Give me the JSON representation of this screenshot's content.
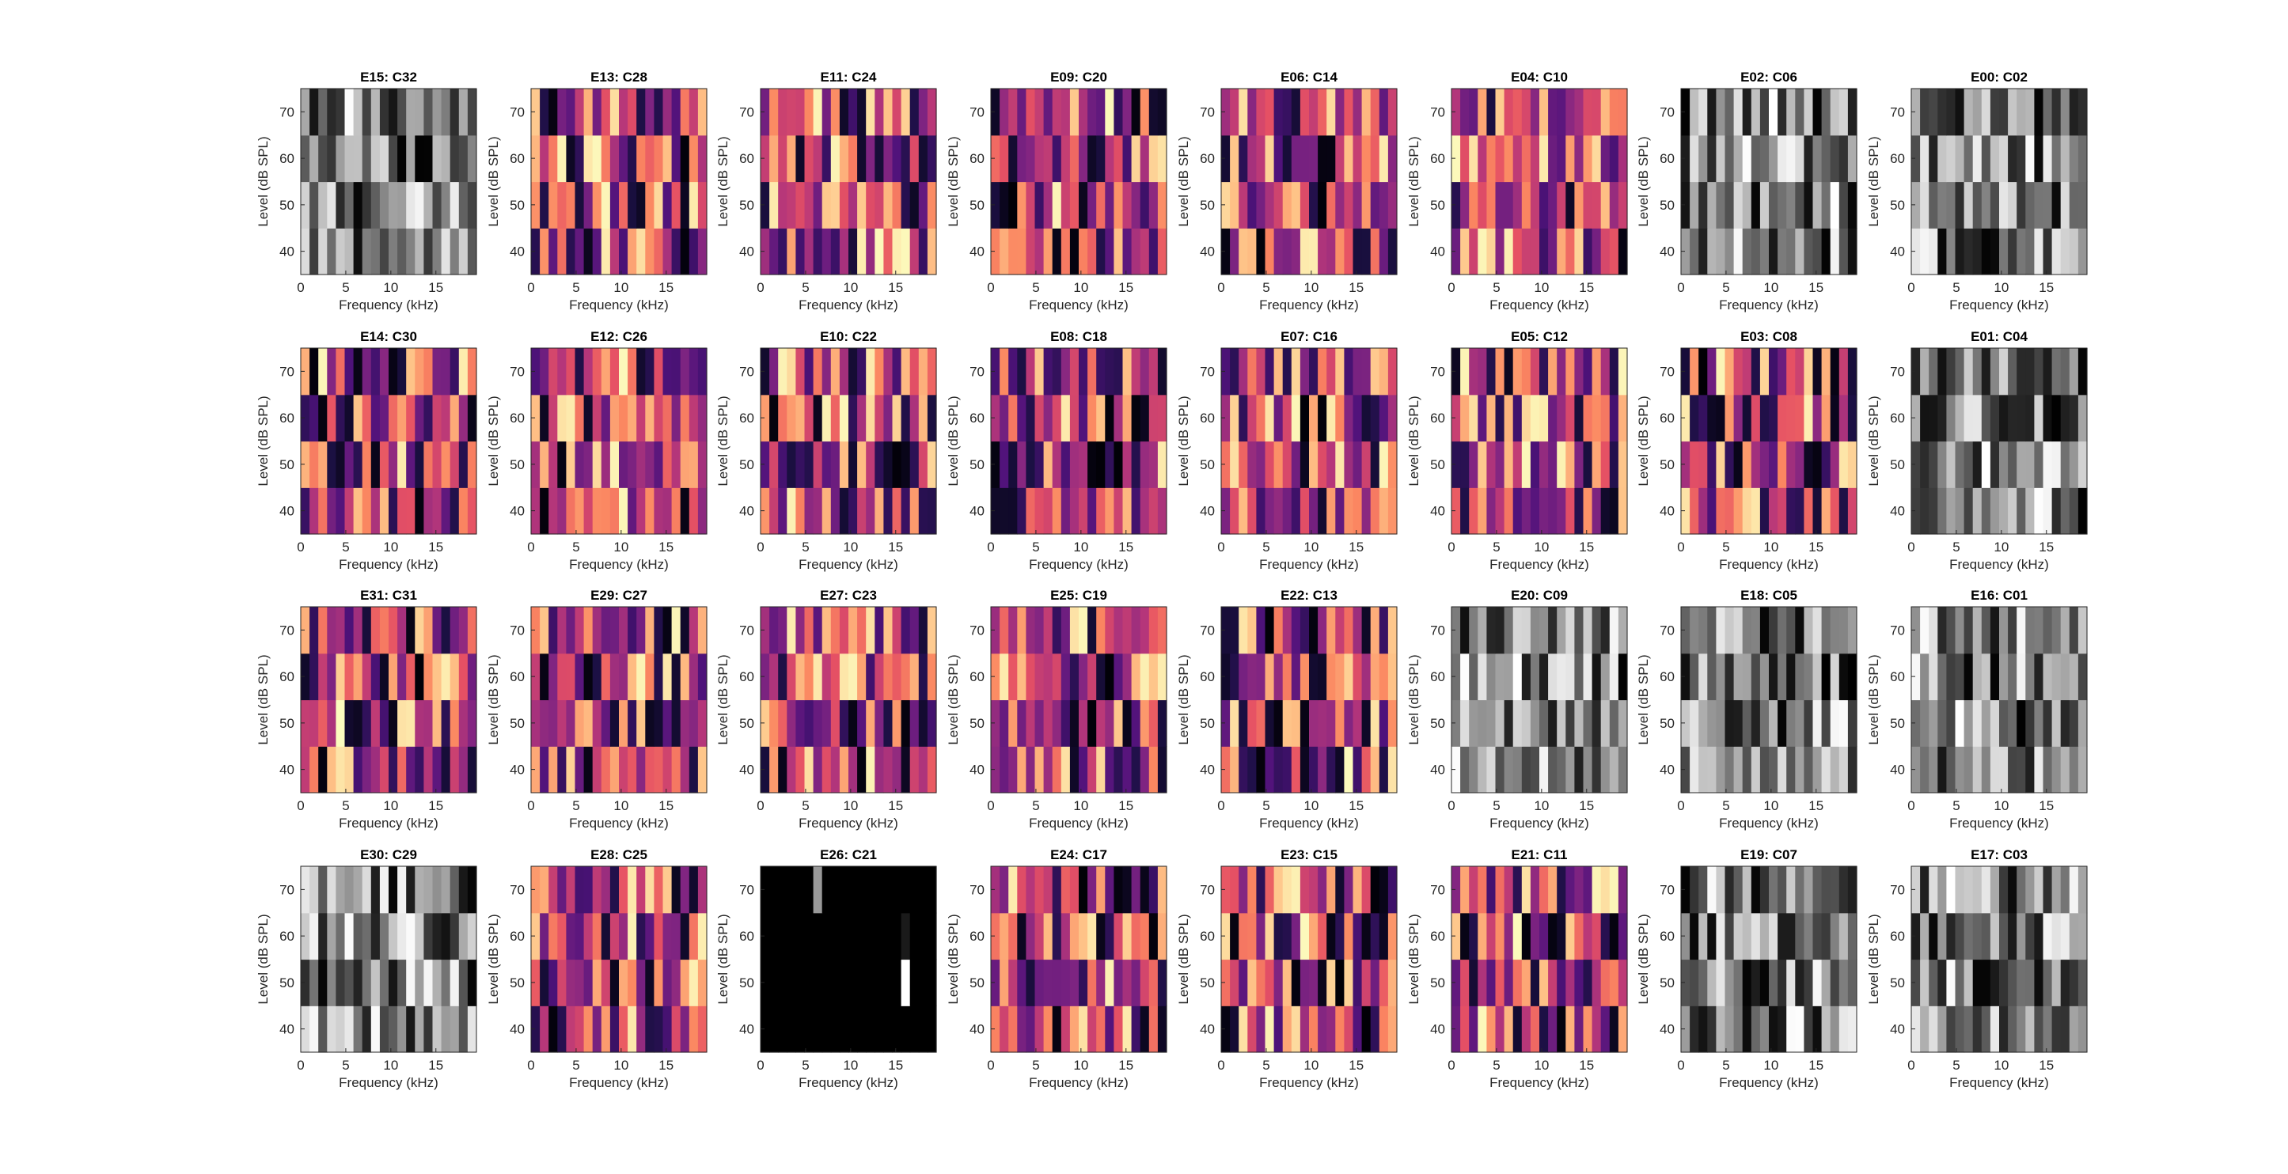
{
  "chart_data": {
    "type": "heatmap",
    "layout": {
      "rows": 4,
      "cols": 8
    },
    "xlabel": "Frequency (kHz)",
    "ylabel": "Level (dB SPL)",
    "xticks": [
      0,
      5,
      10,
      15
    ],
    "yticks": [
      40,
      50,
      60,
      70
    ],
    "xlim": [
      0,
      19.5
    ],
    "ylim": [
      35,
      75
    ],
    "bin_count_x": 20,
    "level_bins": [
      40,
      50,
      60,
      70
    ],
    "panels": [
      {
        "title": "E15: C32",
        "colormap": "gray"
      },
      {
        "title": "E13: C28",
        "colormap": "magma"
      },
      {
        "title": "E11: C24",
        "colormap": "magma"
      },
      {
        "title": "E09: C20",
        "colormap": "magma"
      },
      {
        "title": "E06: C14",
        "colormap": "magma"
      },
      {
        "title": "E04: C10",
        "colormap": "magma"
      },
      {
        "title": "E02: C06",
        "colormap": "gray"
      },
      {
        "title": "E00: C02",
        "colormap": "gray"
      },
      {
        "title": "E14: C30",
        "colormap": "magma"
      },
      {
        "title": "E12: C26",
        "colormap": "magma"
      },
      {
        "title": "E10: C22",
        "colormap": "magma"
      },
      {
        "title": "E08: C18",
        "colormap": "magma"
      },
      {
        "title": "E07: C16",
        "colormap": "magma"
      },
      {
        "title": "E05: C12",
        "colormap": "magma"
      },
      {
        "title": "E03: C08",
        "colormap": "magma"
      },
      {
        "title": "E01: C04",
        "colormap": "gray"
      },
      {
        "title": "E31: C31",
        "colormap": "magma"
      },
      {
        "title": "E29: C27",
        "colormap": "magma"
      },
      {
        "title": "E27: C23",
        "colormap": "magma"
      },
      {
        "title": "E25: C19",
        "colormap": "magma"
      },
      {
        "title": "E22: C13",
        "colormap": "magma"
      },
      {
        "title": "E20: C09",
        "colormap": "gray"
      },
      {
        "title": "E18: C05",
        "colormap": "gray"
      },
      {
        "title": "E16: C01",
        "colormap": "gray"
      },
      {
        "title": "E30: C29",
        "colormap": "gray"
      },
      {
        "title": "E28: C25",
        "colormap": "magma"
      },
      {
        "title": "E26: C21",
        "colormap": "gray"
      },
      {
        "title": "E24: C17",
        "colormap": "magma"
      },
      {
        "title": "E23: C15",
        "colormap": "magma"
      },
      {
        "title": "E21: C11",
        "colormap": "magma"
      },
      {
        "title": "E19: C07",
        "colormap": "gray"
      },
      {
        "title": "E17: C03",
        "colormap": "gray"
      }
    ]
  }
}
